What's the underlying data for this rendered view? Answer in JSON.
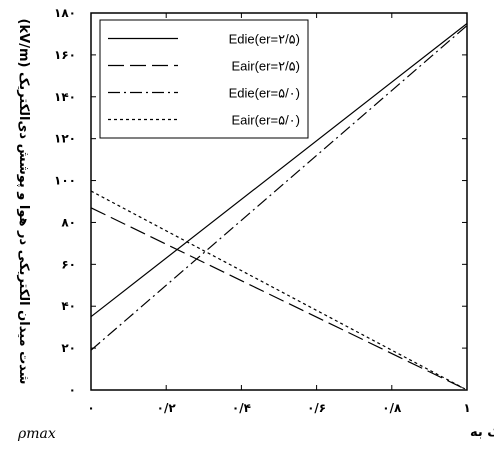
{
  "chart_data": {
    "type": "line",
    "title": "",
    "xlabel": "نسبت چگالی بار نشست کرده روی سطح دی‌الکتریک به",
    "xlabel_symbol": "ρmax",
    "ylabel": "شدت میدان الکتریکی در هوا و پوشش دی‌الکتریک (kV/m)",
    "xlim": [
      0,
      1
    ],
    "ylim": [
      0,
      180
    ],
    "x_ticks": [
      0,
      0.2,
      0.4,
      0.6,
      0.8,
      1
    ],
    "x_tick_labels": [
      "۰",
      "۰/۲",
      "۰/۴",
      "۰/۶",
      "۰/۸",
      "۱"
    ],
    "y_ticks": [
      0,
      20,
      40,
      60,
      80,
      100,
      120,
      140,
      160,
      180
    ],
    "y_tick_labels": [
      "۰",
      "۲۰",
      "۴۰",
      "۶۰",
      "۸۰",
      "۱۰۰",
      "۱۲۰",
      "۱۴۰",
      "۱۶۰",
      "۱۸۰"
    ],
    "grid": false,
    "legend_position": "top-left",
    "series": [
      {
        "name": "Edie(er=۲/۵)",
        "style": "solid",
        "x": [
          0,
          1
        ],
        "y": [
          35,
          175
        ]
      },
      {
        "name": "Eair(er=۲/۵)",
        "style": "longdash",
        "x": [
          0,
          1
        ],
        "y": [
          87,
          0
        ]
      },
      {
        "name": "Edie(er=۵/۰)",
        "style": "dashdot",
        "x": [
          0,
          1
        ],
        "y": [
          19,
          174
        ]
      },
      {
        "name": "Eair(er=۵/۰)",
        "style": "dotted",
        "x": [
          0,
          1
        ],
        "y": [
          95,
          0
        ]
      }
    ]
  }
}
